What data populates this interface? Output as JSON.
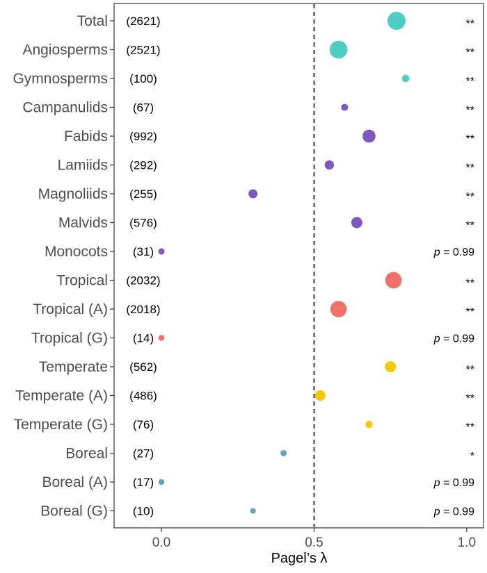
{
  "chart_data": {
    "type": "scatter",
    "xlabel": "Pagel’s λ",
    "xlim": [
      -0.155,
      1.055
    ],
    "xticks": [
      0.0,
      0.5,
      1.0
    ],
    "xtick_labels": [
      "0.0",
      "0.5",
      "1.0"
    ],
    "reference_line": 0.5,
    "grid": false,
    "p_prefix": "p",
    "colors": {
      "lineage": "#4ECDC4",
      "clade": "#7E57C2",
      "tropical": "#F07167",
      "temperate": "#F5C800",
      "boreal": "#6A9FBF"
    },
    "categories": [
      {
        "label": "Total",
        "count": "(2621)",
        "lambda": 0.77,
        "n": 2621,
        "group": "lineage",
        "sig": "**"
      },
      {
        "label": "Angiosperms",
        "count": "(2521)",
        "lambda": 0.58,
        "n": 2521,
        "group": "lineage",
        "sig": "**"
      },
      {
        "label": "Gymnosperms",
        "count": "(100)",
        "lambda": 0.8,
        "n": 100,
        "group": "lineage",
        "sig": "**"
      },
      {
        "label": "Campanulids",
        "count": "(67)",
        "lambda": 0.6,
        "n": 67,
        "group": "clade",
        "sig": "**"
      },
      {
        "label": "Fabids",
        "count": "(992)",
        "lambda": 0.68,
        "n": 992,
        "group": "clade",
        "sig": "**"
      },
      {
        "label": "Lamiids",
        "count": "(292)",
        "lambda": 0.55,
        "n": 292,
        "group": "clade",
        "sig": "**"
      },
      {
        "label": "Magnoliids",
        "count": "(255)",
        "lambda": 0.3,
        "n": 255,
        "group": "clade",
        "sig": "**"
      },
      {
        "label": "Malvids",
        "count": "(576)",
        "lambda": 0.64,
        "n": 576,
        "group": "clade",
        "sig": "**"
      },
      {
        "label": "Monocots",
        "count": "(31)",
        "lambda": 0.0,
        "n": 31,
        "group": "clade",
        "sig": "= 0.99"
      },
      {
        "label": "Tropical",
        "count": "(2032)",
        "lambda": 0.76,
        "n": 2032,
        "group": "tropical",
        "sig": "**"
      },
      {
        "label": "Tropical (A)",
        "count": "(2018)",
        "lambda": 0.58,
        "n": 2018,
        "group": "tropical",
        "sig": "**"
      },
      {
        "label": "Tropical (G)",
        "count": "(14)",
        "lambda": 0.0,
        "n": 14,
        "group": "tropical",
        "sig": "= 0.99"
      },
      {
        "label": "Temperate",
        "count": "(562)",
        "lambda": 0.75,
        "n": 562,
        "group": "temperate",
        "sig": "**"
      },
      {
        "label": "Temperate (A)",
        "count": "(486)",
        "lambda": 0.52,
        "n": 486,
        "group": "temperate",
        "sig": "**"
      },
      {
        "label": "Temperate (G)",
        "count": "(76)",
        "lambda": 0.68,
        "n": 76,
        "group": "temperate",
        "sig": "**"
      },
      {
        "label": "Boreal",
        "count": "(27)",
        "lambda": 0.4,
        "n": 27,
        "group": "boreal",
        "sig": "*"
      },
      {
        "label": "Boreal (A)",
        "count": "(17)",
        "lambda": 0.0,
        "n": 17,
        "group": "boreal",
        "sig": "= 0.99"
      },
      {
        "label": "Boreal (G)",
        "count": "(10)",
        "lambda": 0.3,
        "n": 10,
        "group": "boreal",
        "sig": "= 0.99"
      }
    ]
  }
}
